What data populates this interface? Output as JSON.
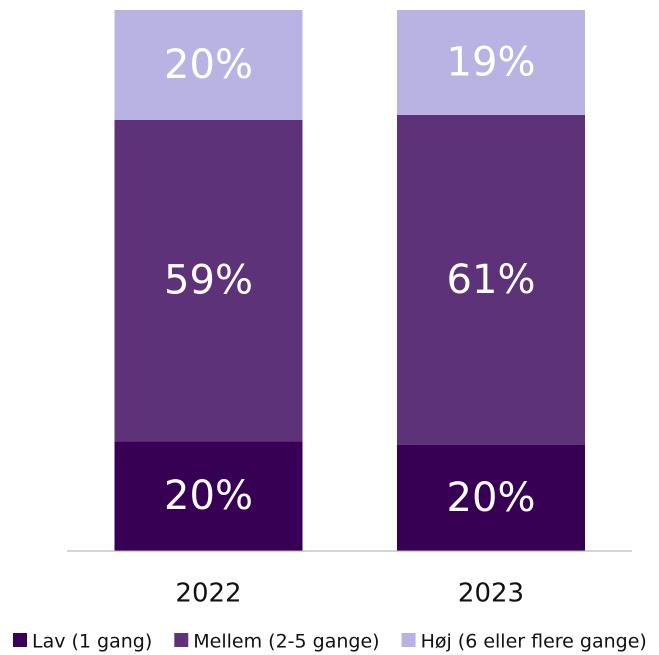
{
  "chart_data": {
    "type": "stacked_bar",
    "categories": [
      "2022",
      "2023"
    ],
    "series": [
      {
        "name": "Lav (1 gang)",
        "color": "#380055",
        "values": [
          20.3,
          19.6
        ],
        "value_labels": [
          "20%",
          "20%"
        ]
      },
      {
        "name": "Mellem (2-5 gange)",
        "color": "#5e3278",
        "values": [
          59.4,
          61.0
        ],
        "value_labels": [
          "59%",
          "61%"
        ]
      },
      {
        "name": "Høj (6 eller flere gange)",
        "color": "#b9b3e3",
        "values": [
          20.3,
          19.4
        ],
        "value_labels": [
          "20%",
          "19%"
        ]
      }
    ],
    "ylim": [
      0,
      100
    ]
  }
}
